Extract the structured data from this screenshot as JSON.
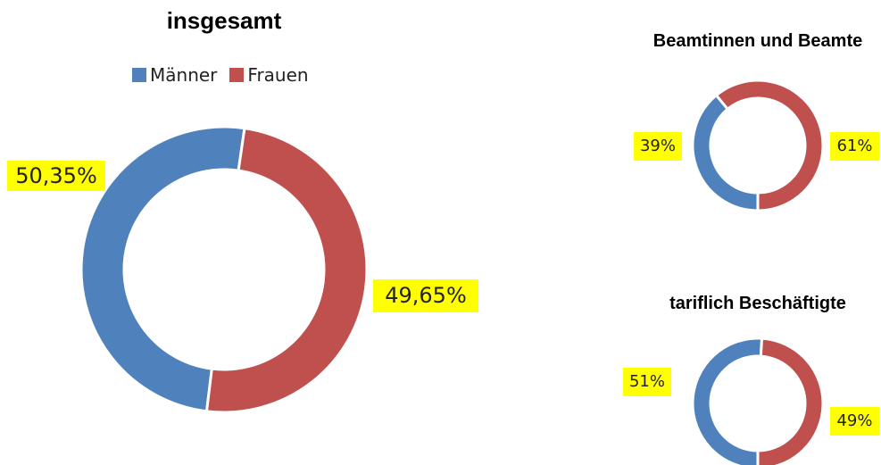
{
  "chart_data": [
    {
      "type": "donut",
      "title": "insgesamt",
      "categories": [
        "Männer",
        "Frauen"
      ],
      "values": [
        50.35,
        49.65
      ],
      "value_labels": [
        "50,35%",
        "49,65%"
      ],
      "colors": [
        "#4f81bd",
        "#c0504d"
      ],
      "legend": "top"
    },
    {
      "type": "donut",
      "title": "Beamtinnen und Beamte",
      "values": [
        39,
        61
      ],
      "value_labels": [
        "39%",
        "61%"
      ],
      "colors": [
        "#4f81bd",
        "#c0504d"
      ]
    },
    {
      "type": "donut",
      "title": "tariflich Beschäftigte",
      "values": [
        51,
        49
      ],
      "value_labels": [
        "51%",
        "49%"
      ],
      "colors": [
        "#4f81bd",
        "#c0504d"
      ]
    }
  ]
}
